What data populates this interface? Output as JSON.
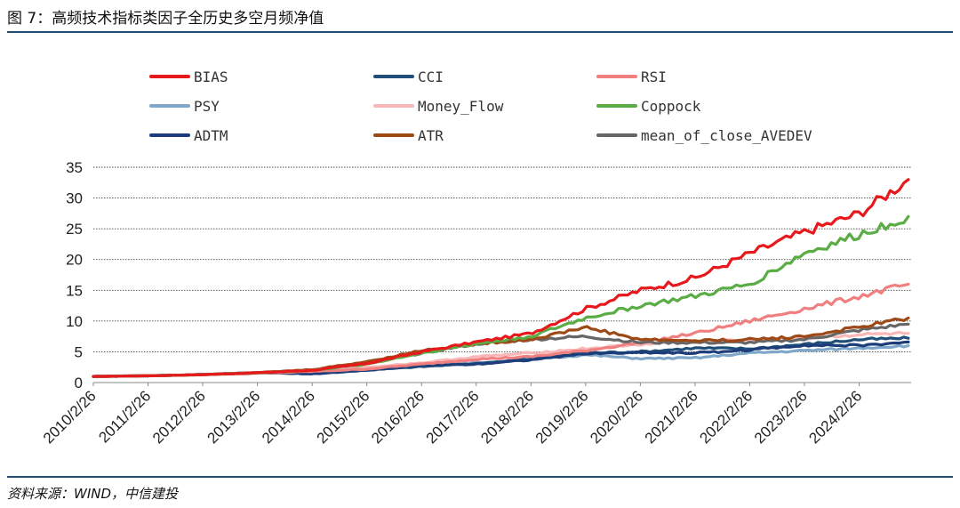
{
  "header": {
    "title": "图 7：高频技术指标类因子全历史多空月频净值"
  },
  "footer": {
    "source": "资料来源：WIND，中信建投"
  },
  "chart_data": {
    "type": "line",
    "title": "",
    "xlabel": "",
    "ylabel": "",
    "ylim": [
      0,
      35
    ],
    "yticks": [
      0,
      5,
      10,
      15,
      20,
      25,
      30,
      35
    ],
    "grid": "horizontal-dashed",
    "legend_position": "top",
    "x_tick_labels": [
      "2010/2/26",
      "2011/2/26",
      "2012/2/26",
      "2013/2/26",
      "2014/2/26",
      "2015/2/26",
      "2016/2/26",
      "2017/2/26",
      "2018/2/26",
      "2019/2/26",
      "2020/2/26",
      "2021/2/26",
      "2022/2/26",
      "2023/2/26",
      "2024/2/26"
    ],
    "x_years": [
      2010.0,
      2011.0,
      2012.0,
      2013.0,
      2014.0,
      2015.0,
      2016.0,
      2017.0,
      2018.0,
      2019.0,
      2020.0,
      2021.0,
      2022.0,
      2023.0,
      2024.0,
      2024.9
    ],
    "series": [
      {
        "name": "BIAS",
        "color": "#e8191d",
        "values": [
          1.0,
          1.1,
          1.3,
          1.6,
          2.0,
          3.1,
          5.0,
          6.6,
          8.0,
          12.0,
          15.0,
          17.0,
          21.0,
          24.5,
          27.5,
          33.0
        ]
      },
      {
        "name": "CCI",
        "color": "#1f4e79",
        "values": [
          1.0,
          1.1,
          1.3,
          1.6,
          1.8,
          2.0,
          2.6,
          3.1,
          3.8,
          4.8,
          5.0,
          5.6,
          5.5,
          6.2,
          7.0,
          7.2
        ]
      },
      {
        "name": "RSI",
        "color": "#f08080",
        "values": [
          1.0,
          1.1,
          1.3,
          1.5,
          1.8,
          2.2,
          3.0,
          3.8,
          4.2,
          5.2,
          6.5,
          8.0,
          10.0,
          12.0,
          14.0,
          16.0
        ]
      },
      {
        "name": "PSY",
        "color": "#7fa7c9",
        "values": [
          1.0,
          1.1,
          1.3,
          1.6,
          1.8,
          2.1,
          2.7,
          3.2,
          3.8,
          4.5,
          3.9,
          4.0,
          4.8,
          5.2,
          5.6,
          6.0
        ]
      },
      {
        "name": "Money_Flow",
        "color": "#f9b7b7",
        "values": [
          1.0,
          1.1,
          1.3,
          1.6,
          1.9,
          2.5,
          3.2,
          4.2,
          4.8,
          5.5,
          6.2,
          6.8,
          6.8,
          7.2,
          7.8,
          8.0
        ]
      },
      {
        "name": "Coppock",
        "color": "#5aac44",
        "values": [
          1.0,
          1.1,
          1.3,
          1.6,
          2.0,
          3.0,
          4.8,
          6.3,
          7.5,
          10.5,
          12.5,
          14.0,
          16.0,
          21.0,
          24.0,
          27.0
        ]
      },
      {
        "name": "ADTM",
        "color": "#1c3d7a",
        "values": [
          1.0,
          1.1,
          1.3,
          1.6,
          1.4,
          2.0,
          2.8,
          3.0,
          3.7,
          4.7,
          4.9,
          4.8,
          5.3,
          6.1,
          6.0,
          6.6
        ]
      },
      {
        "name": "ATR",
        "color": "#9e4a17",
        "values": [
          1.0,
          1.1,
          1.3,
          1.6,
          2.1,
          3.4,
          5.2,
          6.3,
          7.0,
          9.0,
          7.0,
          6.8,
          7.0,
          7.5,
          9.0,
          10.5
        ]
      },
      {
        "name": "mean_of_close_AVEDEV",
        "color": "#666666",
        "values": [
          1.0,
          1.1,
          1.3,
          1.6,
          2.0,
          3.1,
          4.8,
          6.3,
          7.0,
          7.5,
          6.5,
          6.5,
          6.5,
          7.0,
          8.5,
          9.5
        ]
      }
    ]
  }
}
